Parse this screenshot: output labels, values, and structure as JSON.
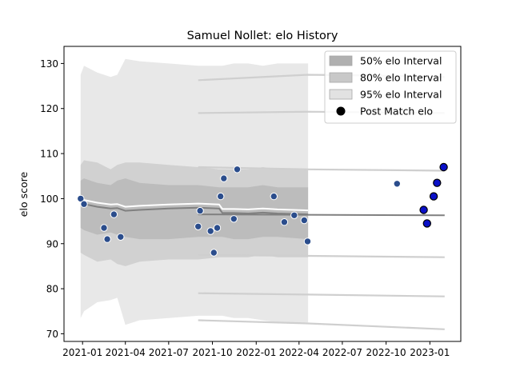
{
  "chart_data": {
    "type": "scatter",
    "title": "Samuel Nollet: elo History",
    "xlabel": "",
    "ylabel": "elo score",
    "xlim": [
      "2020-11-23",
      "2023-03-07"
    ],
    "ylim": [
      68.3,
      133.8
    ],
    "x_ticks": [
      {
        "date": "2021-01-01",
        "label": "2021-01"
      },
      {
        "date": "2021-04-01",
        "label": "2021-04"
      },
      {
        "date": "2021-07-01",
        "label": "2021-07"
      },
      {
        "date": "2021-10-01",
        "label": "2021-10"
      },
      {
        "date": "2022-01-01",
        "label": "2022-01"
      },
      {
        "date": "2022-04-01",
        "label": "2022-04"
      },
      {
        "date": "2022-07-01",
        "label": "2022-07"
      },
      {
        "date": "2022-10-01",
        "label": "2022-10"
      },
      {
        "date": "2023-01-01",
        "label": "2023-01"
      }
    ],
    "y_ticks": [
      70,
      80,
      90,
      100,
      110,
      120,
      130
    ],
    "grid": false,
    "legend_position": "top-right",
    "legend": [
      {
        "label": "50% elo Interval",
        "kind": "patch",
        "color": "#b0b0b0"
      },
      {
        "label": "80% elo Interval",
        "kind": "patch",
        "color": "#c8c8c8"
      },
      {
        "label": "95% elo Interval",
        "kind": "patch",
        "color": "#e2e2e2"
      },
      {
        "label": "Post Match elo",
        "kind": "marker",
        "color": "#000000"
      }
    ],
    "colors": {
      "band_50": "#b8b8b8",
      "band_80": "#cccccc",
      "band_95": "#e4e4e4",
      "mean_line": "#808080",
      "post_match_point": "#2b4d8c",
      "highlight_point": "#0a10c8",
      "point_edge": "#ffffff"
    },
    "rating_history": [
      {
        "date": "2020-12-28",
        "mean": 99.0,
        "i50": [
          93.5,
          104.0
        ],
        "i80": [
          88.0,
          107.5
        ],
        "i95": [
          73.5,
          127.5
        ]
      },
      {
        "date": "2021-01-04",
        "mean": 98.8,
        "i50": [
          93.0,
          104.5
        ],
        "i80": [
          87.5,
          108.5
        ],
        "i95": [
          75.0,
          129.5
        ]
      },
      {
        "date": "2021-02-01",
        "mean": 98.2,
        "i50": [
          92.0,
          103.5
        ],
        "i80": [
          86.0,
          108.0
        ],
        "i95": [
          77.0,
          128.0
        ]
      },
      {
        "date": "2021-03-01",
        "mean": 97.8,
        "i50": [
          92.5,
          103.0
        ],
        "i80": [
          86.5,
          106.5
        ],
        "i95": [
          77.5,
          127.0
        ]
      },
      {
        "date": "2021-03-15",
        "mean": 97.9,
        "i50": [
          92.0,
          104.0
        ],
        "i80": [
          85.5,
          107.5
        ],
        "i95": [
          78.0,
          127.5
        ]
      },
      {
        "date": "2021-04-01",
        "mean": 97.3,
        "i50": [
          91.5,
          104.5
        ],
        "i80": [
          85.0,
          108.0
        ],
        "i95": [
          72.0,
          131.0
        ]
      },
      {
        "date": "2021-05-01",
        "mean": 97.5,
        "i50": [
          91.0,
          103.5
        ],
        "i80": [
          86.0,
          108.0
        ],
        "i95": [
          73.0,
          130.5
        ]
      },
      {
        "date": "2021-07-01",
        "mean": 97.8,
        "i50": [
          91.0,
          103.0
        ],
        "i80": [
          86.5,
          107.5
        ],
        "i95": [
          73.5,
          130.0
        ]
      },
      {
        "date": "2021-09-01",
        "mean": 98.0,
        "i50": [
          91.5,
          103.0
        ],
        "i80": [
          86.5,
          107.0
        ],
        "i95": [
          74.0,
          129.5
        ]
      },
      {
        "date": "2021-10-15",
        "mean": 97.8,
        "i50": [
          91.5,
          102.5
        ],
        "i80": [
          87.0,
          106.5
        ],
        "i95": [
          74.0,
          129.5
        ]
      },
      {
        "date": "2021-10-22",
        "mean": 96.8,
        "i50": [
          91.5,
          102.5
        ],
        "i80": [
          87.0,
          106.5
        ],
        "i95": [
          74.0,
          129.5
        ]
      },
      {
        "date": "2021-11-15",
        "mean": 96.8,
        "i50": [
          91.0,
          102.5
        ],
        "i80": [
          87.0,
          106.5
        ],
        "i95": [
          73.5,
          130.0
        ]
      },
      {
        "date": "2021-12-15",
        "mean": 96.7,
        "i50": [
          91.0,
          102.5
        ],
        "i80": [
          87.0,
          106.5
        ],
        "i95": [
          73.5,
          130.0
        ]
      },
      {
        "date": "2022-01-15",
        "mean": 96.9,
        "i50": [
          91.5,
          103.0
        ],
        "i80": [
          87.5,
          107.0
        ],
        "i95": [
          73.0,
          129.5
        ]
      },
      {
        "date": "2022-02-15",
        "mean": 96.7,
        "i50": [
          91.5,
          102.5
        ],
        "i80": [
          87.0,
          106.5
        ],
        "i95": [
          72.5,
          130.0
        ]
      },
      {
        "date": "2022-04-20",
        "mean": 96.5,
        "i50": [
          91.0,
          102.5
        ],
        "i80": [
          87.0,
          106.5
        ],
        "i95": [
          72.5,
          130.0
        ]
      }
    ],
    "mean_line_2": [
      {
        "date": "2021-09-01",
        "value": 96.5
      },
      {
        "date": "2023-02-01",
        "value": 96.3
      }
    ],
    "faint_lines": [
      {
        "points": [
          {
            "date": "2021-09-01",
            "value": 126.3
          },
          {
            "date": "2022-04-20",
            "value": 127.5
          },
          {
            "date": "2022-10-01",
            "value": 127.3
          },
          {
            "date": "2023-02-01",
            "value": 127.0
          }
        ]
      },
      {
        "points": [
          {
            "date": "2021-09-01",
            "value": 119.0
          },
          {
            "date": "2022-04-20",
            "value": 119.3
          },
          {
            "date": "2023-02-01",
            "value": 119.0
          }
        ]
      },
      {
        "points": [
          {
            "date": "2021-09-01",
            "value": 107.0
          },
          {
            "date": "2022-04-20",
            "value": 106.5
          },
          {
            "date": "2023-02-01",
            "value": 106.2
          }
        ]
      },
      {
        "points": [
          {
            "date": "2021-09-01",
            "value": 87.5
          },
          {
            "date": "2022-04-20",
            "value": 87.3
          },
          {
            "date": "2023-02-01",
            "value": 87.0
          }
        ]
      },
      {
        "points": [
          {
            "date": "2021-09-01",
            "value": 79.0
          },
          {
            "date": "2022-04-20",
            "value": 78.7
          },
          {
            "date": "2023-02-01",
            "value": 78.3
          }
        ]
      },
      {
        "points": [
          {
            "date": "2021-09-01",
            "value": 73.0
          },
          {
            "date": "2022-04-20",
            "value": 72.3
          },
          {
            "date": "2023-02-01",
            "value": 71.0
          }
        ]
      }
    ],
    "series": [
      {
        "name": "Post Match elo",
        "points": [
          {
            "date": "2020-12-28",
            "value": 100.0
          },
          {
            "date": "2021-01-04",
            "value": 98.8
          },
          {
            "date": "2021-02-15",
            "value": 93.5
          },
          {
            "date": "2021-02-22",
            "value": 91.0
          },
          {
            "date": "2021-03-08",
            "value": 96.5
          },
          {
            "date": "2021-03-22",
            "value": 91.5
          },
          {
            "date": "2021-09-01",
            "value": 93.8
          },
          {
            "date": "2021-09-05",
            "value": 97.3
          },
          {
            "date": "2021-09-27",
            "value": 92.8
          },
          {
            "date": "2021-10-04",
            "value": 88.0
          },
          {
            "date": "2021-10-11",
            "value": 93.5
          },
          {
            "date": "2021-10-18",
            "value": 100.5
          },
          {
            "date": "2021-10-25",
            "value": 104.5
          },
          {
            "date": "2021-11-15",
            "value": 95.5
          },
          {
            "date": "2021-11-22",
            "value": 106.5
          },
          {
            "date": "2022-02-07",
            "value": 100.5
          },
          {
            "date": "2022-03-01",
            "value": 94.8
          },
          {
            "date": "2022-03-22",
            "value": 96.3
          },
          {
            "date": "2022-04-12",
            "value": 95.2
          },
          {
            "date": "2022-04-19",
            "value": 90.5
          },
          {
            "date": "2022-10-24",
            "value": 103.3
          }
        ]
      },
      {
        "name": "",
        "points": [
          {
            "date": "2022-12-19",
            "value": 97.5
          },
          {
            "date": "2022-12-26",
            "value": 94.5
          },
          {
            "date": "2023-01-09",
            "value": 100.5
          },
          {
            "date": "2023-01-16",
            "value": 103.5
          },
          {
            "date": "2023-01-30",
            "value": 107.0
          }
        ]
      }
    ]
  }
}
